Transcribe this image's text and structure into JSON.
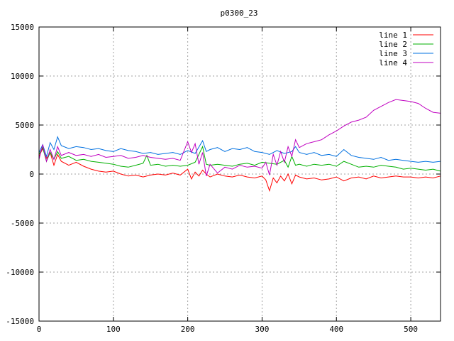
{
  "chart_data": {
    "type": "line",
    "title": "p0300_23",
    "xlabel": "",
    "ylabel": "",
    "xlim": [
      0,
      540
    ],
    "ylim": [
      -15000,
      15000
    ],
    "xticks": [
      0,
      100,
      200,
      300,
      400,
      500
    ],
    "yticks": [
      -15000,
      -10000,
      -5000,
      0,
      5000,
      10000,
      15000
    ],
    "grid": true,
    "legend_position": "top-right",
    "series": [
      {
        "name": "line 1",
        "color": "#ff0000",
        "x": [
          0,
          5,
          10,
          15,
          20,
          25,
          30,
          40,
          50,
          60,
          70,
          80,
          90,
          100,
          110,
          120,
          130,
          140,
          150,
          160,
          170,
          180,
          190,
          200,
          205,
          210,
          215,
          220,
          225,
          230,
          240,
          250,
          260,
          270,
          280,
          290,
          300,
          305,
          310,
          315,
          320,
          325,
          330,
          335,
          340,
          345,
          350,
          360,
          370,
          380,
          390,
          400,
          410,
          420,
          430,
          440,
          450,
          460,
          470,
          480,
          490,
          500,
          510,
          520,
          530,
          540
        ],
        "y": [
          1800,
          2600,
          1600,
          2200,
          900,
          2000,
          1300,
          900,
          1200,
          800,
          500,
          300,
          200,
          300,
          0,
          -200,
          -100,
          -300,
          -100,
          0,
          -100,
          100,
          -100,
          500,
          -500,
          200,
          -200,
          400,
          0,
          -300,
          0,
          -200,
          -300,
          -100,
          -300,
          -400,
          -200,
          -600,
          -1700,
          -400,
          -900,
          -200,
          -700,
          0,
          -1000,
          -100,
          -300,
          -500,
          -400,
          -600,
          -500,
          -300,
          -700,
          -400,
          -300,
          -500,
          -200,
          -400,
          -300,
          -200,
          -300,
          -300,
          -400,
          -300,
          -400,
          -200
        ]
      },
      {
        "name": "line 2",
        "color": "#00b000",
        "x": [
          0,
          5,
          10,
          15,
          20,
          25,
          30,
          40,
          50,
          60,
          70,
          80,
          90,
          100,
          110,
          120,
          130,
          140,
          145,
          150,
          160,
          170,
          180,
          190,
          200,
          210,
          220,
          225,
          230,
          240,
          250,
          260,
          270,
          280,
          290,
          300,
          310,
          320,
          330,
          335,
          340,
          345,
          350,
          360,
          370,
          380,
          390,
          400,
          410,
          420,
          430,
          440,
          450,
          460,
          470,
          480,
          490,
          500,
          510,
          520,
          530,
          540
        ],
        "y": [
          2000,
          2700,
          1300,
          2200,
          1500,
          2300,
          1600,
          1800,
          1400,
          1500,
          1300,
          1200,
          1100,
          1000,
          800,
          700,
          900,
          1100,
          1900,
          900,
          1000,
          800,
          900,
          800,
          900,
          1200,
          2800,
          1000,
          900,
          1000,
          900,
          800,
          1000,
          1100,
          900,
          1200,
          1100,
          1000,
          1400,
          700,
          1800,
          900,
          1000,
          800,
          1000,
          900,
          1000,
          800,
          1300,
          1000,
          700,
          800,
          700,
          900,
          800,
          700,
          500,
          600,
          500,
          400,
          500,
          300
        ]
      },
      {
        "name": "line 3",
        "color": "#0070e0",
        "x": [
          0,
          5,
          10,
          15,
          20,
          25,
          30,
          40,
          50,
          60,
          70,
          80,
          90,
          100,
          110,
          120,
          130,
          140,
          150,
          160,
          170,
          180,
          190,
          200,
          210,
          220,
          225,
          230,
          240,
          250,
          260,
          270,
          280,
          290,
          300,
          310,
          320,
          330,
          340,
          345,
          350,
          360,
          370,
          380,
          390,
          400,
          410,
          420,
          430,
          440,
          450,
          460,
          470,
          480,
          490,
          500,
          510,
          520,
          530,
          540
        ],
        "y": [
          2200,
          3000,
          1800,
          3200,
          2500,
          3800,
          2900,
          2600,
          2800,
          2700,
          2500,
          2600,
          2400,
          2300,
          2600,
          2400,
          2300,
          2100,
          2200,
          2000,
          2100,
          2200,
          2000,
          2400,
          2100,
          3400,
          2300,
          2500,
          2700,
          2300,
          2600,
          2500,
          2700,
          2300,
          2200,
          2000,
          2400,
          2100,
          2300,
          2800,
          2200,
          2000,
          2200,
          1900,
          2000,
          1800,
          2500,
          1900,
          1700,
          1600,
          1500,
          1700,
          1400,
          1500,
          1400,
          1300,
          1200,
          1300,
          1200,
          1300
        ]
      },
      {
        "name": "line 4",
        "color": "#c000c0",
        "x": [
          0,
          5,
          10,
          15,
          20,
          25,
          30,
          40,
          50,
          60,
          70,
          80,
          90,
          100,
          110,
          120,
          130,
          140,
          150,
          160,
          170,
          180,
          190,
          200,
          205,
          210,
          215,
          220,
          225,
          230,
          240,
          250,
          260,
          270,
          280,
          290,
          300,
          305,
          310,
          315,
          320,
          325,
          330,
          335,
          340,
          345,
          350,
          360,
          370,
          380,
          390,
          400,
          410,
          420,
          430,
          440,
          450,
          460,
          470,
          480,
          490,
          500,
          510,
          520,
          530,
          540
        ],
        "y": [
          1500,
          3000,
          1300,
          2500,
          1500,
          2800,
          1900,
          2200,
          1900,
          2000,
          1800,
          2000,
          1700,
          1800,
          1900,
          1600,
          1700,
          1900,
          1700,
          1600,
          1500,
          1600,
          1400,
          3300,
          2200,
          3100,
          1000,
          2200,
          -200,
          1000,
          100,
          700,
          500,
          900,
          700,
          800,
          600,
          1200,
          -100,
          2000,
          900,
          2300,
          1200,
          2800,
          1800,
          3500,
          2700,
          3100,
          3300,
          3500,
          4000,
          4400,
          4900,
          5300,
          5500,
          5800,
          6500,
          6900,
          7300,
          7600,
          7500,
          7400,
          7200,
          6700,
          6300,
          6200
        ]
      }
    ]
  }
}
